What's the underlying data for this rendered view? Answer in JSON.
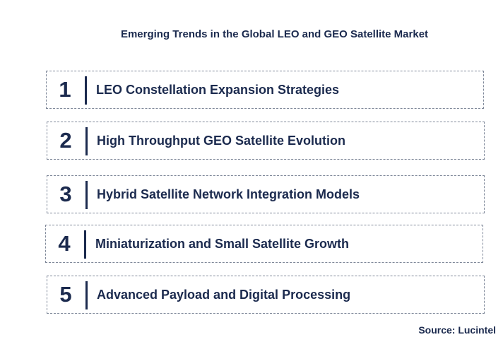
{
  "title": "Emerging Trends in the Global LEO and GEO Satellite Market",
  "trends": [
    {
      "number": "1",
      "label": "LEO Constellation Expansion Strategies"
    },
    {
      "number": "2",
      "label": "High Throughput GEO Satellite Evolution"
    },
    {
      "number": "3",
      "label": "Hybrid Satellite Network Integration Models"
    },
    {
      "number": "4",
      "label": "Miniaturization and Small Satellite Growth"
    },
    {
      "number": "5",
      "label": "Advanced Payload and Digital Processing"
    }
  ],
  "source": "Source: Lucintel",
  "colors": {
    "text": "#1b2a4e",
    "border": "#7f8899"
  }
}
